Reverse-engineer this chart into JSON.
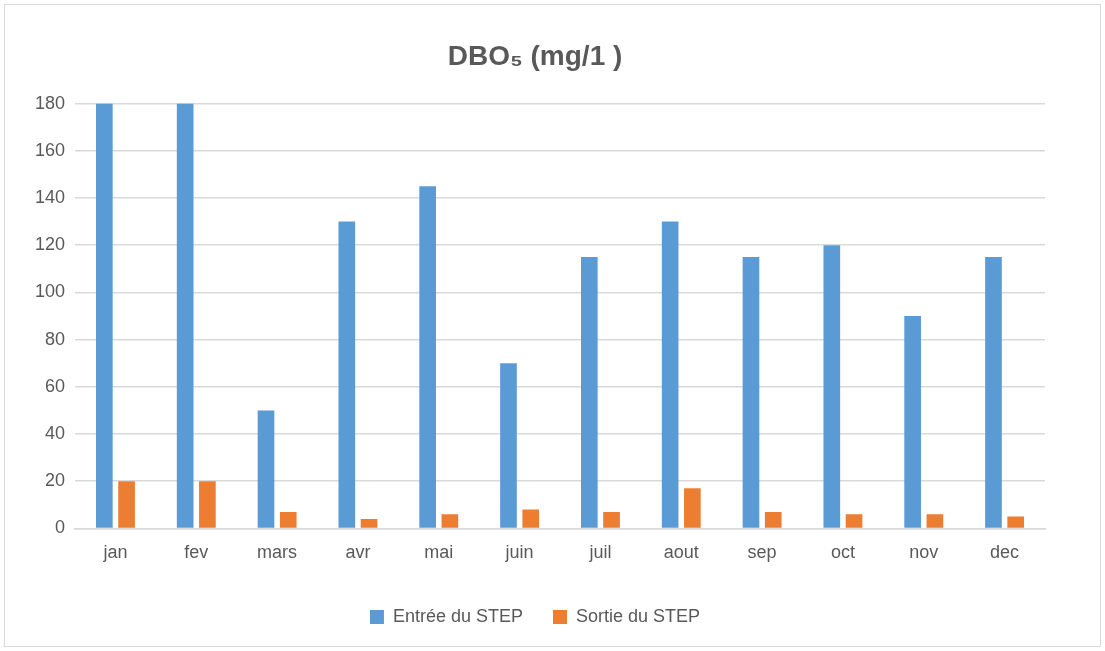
{
  "chart_data": {
    "type": "bar",
    "title": "DBO₅ (mg/1 )",
    "categories": [
      "jan",
      "fev",
      "mars",
      "avr",
      "mai",
      "juin",
      "juil",
      "aout",
      "sep",
      "oct",
      "nov",
      "dec"
    ],
    "series": [
      {
        "name": "Entrée du STEP",
        "color": "#5b9bd5",
        "values": [
          180,
          180,
          50,
          130,
          145,
          70,
          115,
          130,
          115,
          120,
          90,
          115
        ]
      },
      {
        "name": "Sortie du STEP",
        "color": "#ed7d31",
        "values": [
          20,
          20,
          7,
          4,
          6,
          8,
          7,
          17,
          7,
          6,
          6,
          5
        ]
      }
    ],
    "ylim": [
      0,
      180
    ],
    "yticks": [
      0,
      20,
      40,
      60,
      80,
      100,
      120,
      140,
      160,
      180
    ],
    "grid": "y",
    "legend": "bottom"
  }
}
